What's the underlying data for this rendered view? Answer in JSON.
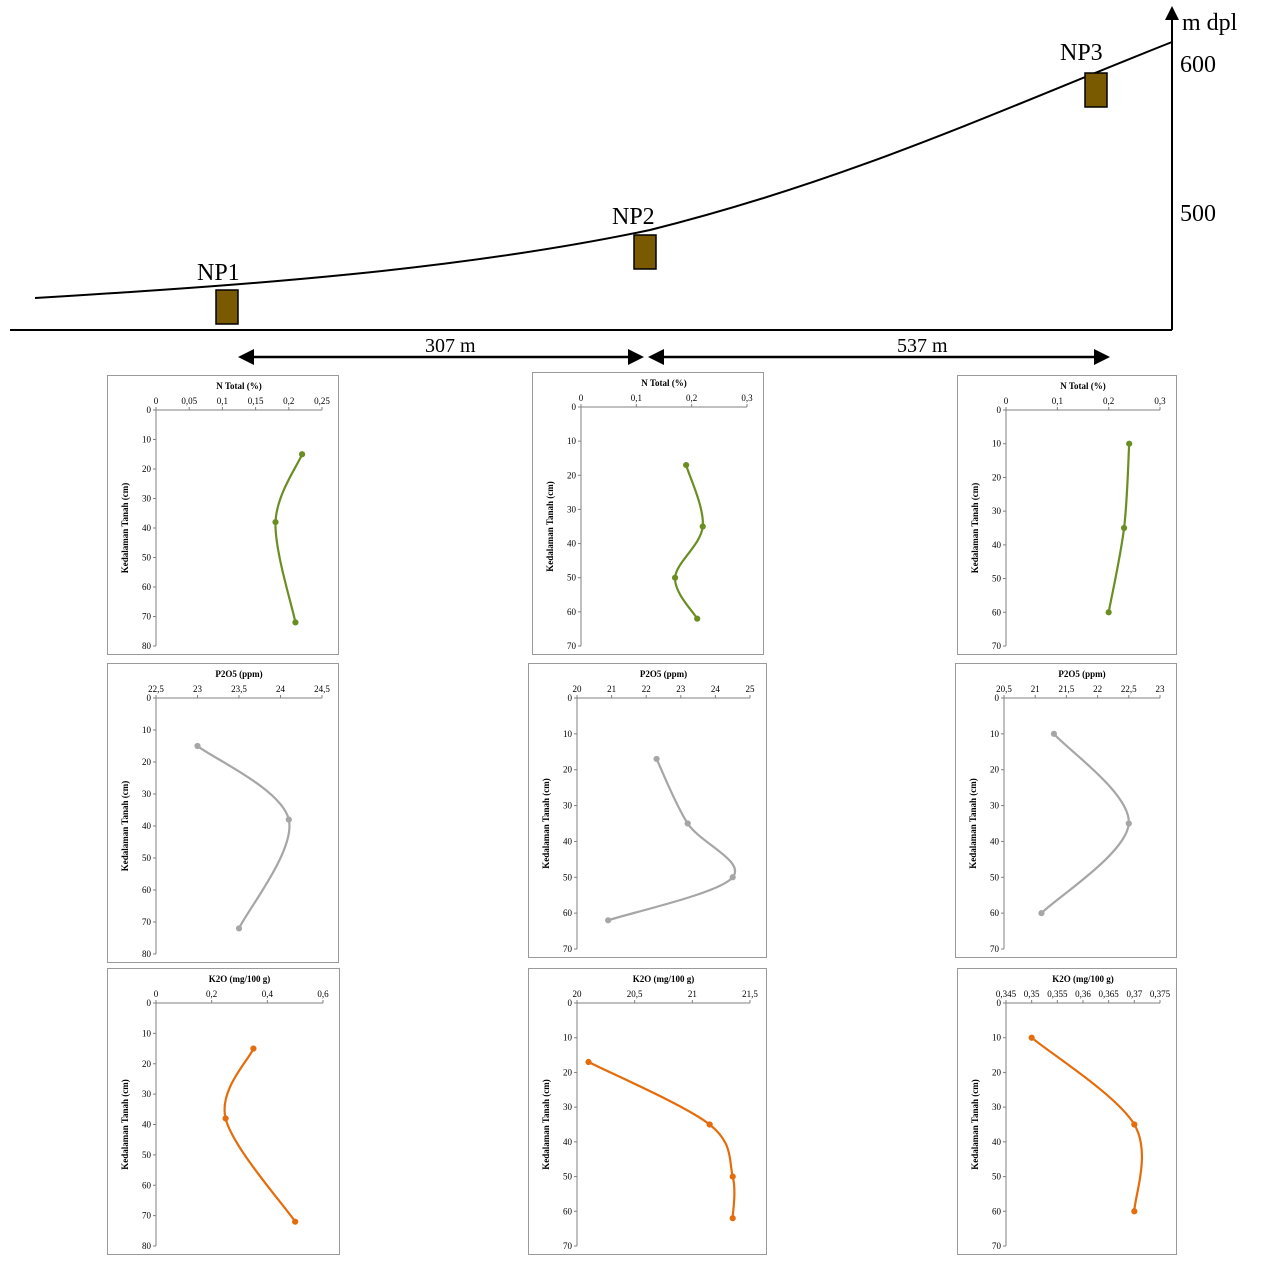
{
  "profile": {
    "elevation_unit": "m dpl",
    "elevation_ticks": [
      "600",
      "500"
    ],
    "sites": [
      {
        "label": "NP1",
        "color": "#7a5a00"
      },
      {
        "label": "NP2",
        "color": "#7a5a00"
      },
      {
        "label": "NP3",
        "color": "#7a5a00"
      }
    ],
    "distances": [
      "307 m",
      "537 m"
    ]
  },
  "colors": {
    "n_total": "#6b8e23",
    "p2o5": "#a6a6a6",
    "k2o": "#e46c0a",
    "p2o5_marker": "#4f81bd"
  },
  "chart_data": [
    {
      "id": "np1-n",
      "type": "line",
      "title": "N Total (%)",
      "ylabel": "Kedalaman Tanah (cm)",
      "x_ticks": [
        "0",
        "0,05",
        "0,1",
        "0,15",
        "0,2",
        "0,25"
      ],
      "xlim": [
        0,
        0.25
      ],
      "y_ticks": [
        "0",
        "10",
        "20",
        "30",
        "40",
        "50",
        "60",
        "70",
        "80"
      ],
      "ylim": [
        0,
        80
      ],
      "x": [
        0.22,
        0.18,
        0.21
      ],
      "y": [
        15,
        38,
        72
      ],
      "color": "#6b8e23"
    },
    {
      "id": "np2-n",
      "type": "line",
      "title": "N Total (%)",
      "ylabel": "Kedalaman Tanah (cm)",
      "x_ticks": [
        "0",
        "0,1",
        "0,2",
        "0,3"
      ],
      "xlim": [
        0,
        0.3
      ],
      "y_ticks": [
        "0",
        "10",
        "20",
        "30",
        "40",
        "50",
        "60",
        "70"
      ],
      "ylim": [
        0,
        70
      ],
      "x": [
        0.19,
        0.22,
        0.17,
        0.21
      ],
      "y": [
        17,
        35,
        50,
        62
      ],
      "color": "#6b8e23"
    },
    {
      "id": "np3-n",
      "type": "line",
      "title": "N Total (%)",
      "ylabel": "Kedalaman Tanah (cm)",
      "x_ticks": [
        "0",
        "0,1",
        "0,2",
        "0,3"
      ],
      "xlim": [
        0,
        0.3
      ],
      "y_ticks": [
        "0",
        "10",
        "20",
        "30",
        "40",
        "50",
        "60",
        "70"
      ],
      "ylim": [
        0,
        70
      ],
      "x": [
        0.24,
        0.23,
        0.2
      ],
      "y": [
        10,
        35,
        60
      ],
      "color": "#6b8e23"
    },
    {
      "id": "np1-p",
      "type": "line",
      "title": "P2O5 (ppm)",
      "ylabel": "Kedalaman Tanah (cm)",
      "x_ticks": [
        "22,5",
        "23",
        "23,5",
        "24",
        "24,5"
      ],
      "xlim": [
        22.5,
        24.5
      ],
      "y_ticks": [
        "0",
        "10",
        "20",
        "30",
        "40",
        "50",
        "60",
        "70",
        "80"
      ],
      "ylim": [
        0,
        80
      ],
      "x": [
        23.0,
        24.1,
        23.5
      ],
      "y": [
        15,
        38,
        72
      ],
      "color": "#a6a6a6"
    },
    {
      "id": "np2-p",
      "type": "line",
      "title": "P2O5 (ppm)",
      "ylabel": "Kedalaman Tanah (cm)",
      "x_ticks": [
        "20",
        "21",
        "22",
        "23",
        "24",
        "25"
      ],
      "xlim": [
        20,
        25
      ],
      "y_ticks": [
        "0",
        "10",
        "20",
        "30",
        "40",
        "50",
        "60",
        "70"
      ],
      "ylim": [
        0,
        70
      ],
      "x": [
        22.3,
        23.2,
        24.5,
        20.9
      ],
      "y": [
        17,
        35,
        50,
        62
      ],
      "color": "#a6a6a6"
    },
    {
      "id": "np3-p",
      "type": "line",
      "title": "P2O5 (ppm)",
      "ylabel": "Kedalaman Tanah (cm)",
      "x_ticks": [
        "20,5",
        "21",
        "21,5",
        "22",
        "22,5",
        "23"
      ],
      "xlim": [
        20.5,
        23
      ],
      "y_ticks": [
        "0",
        "10",
        "20",
        "30",
        "40",
        "50",
        "60",
        "70"
      ],
      "ylim": [
        0,
        70
      ],
      "x": [
        21.3,
        22.5,
        21.1
      ],
      "y": [
        10,
        35,
        60
      ],
      "color": "#a6a6a6"
    },
    {
      "id": "np1-k",
      "type": "line",
      "title": "K2O (mg/100 g)",
      "ylabel": "Kedalaman Tanah (cm)",
      "x_ticks": [
        "0",
        "0,2",
        "0,4",
        "0,6"
      ],
      "xlim": [
        0,
        0.6
      ],
      "y_ticks": [
        "0",
        "10",
        "20",
        "30",
        "40",
        "50",
        "60",
        "70",
        "80"
      ],
      "ylim": [
        0,
        80
      ],
      "x": [
        0.35,
        0.25,
        0.5
      ],
      "y": [
        15,
        38,
        72
      ],
      "color": "#e46c0a"
    },
    {
      "id": "np2-k",
      "type": "line",
      "title": "K2O (mg/100 g)",
      "ylabel": "Kedalaman Tanah (cm)",
      "x_ticks": [
        "20",
        "20,5",
        "21",
        "21,5"
      ],
      "xlim": [
        20,
        21.5
      ],
      "y_ticks": [
        "0",
        "10",
        "20",
        "30",
        "40",
        "50",
        "60",
        "70"
      ],
      "ylim": [
        0,
        70
      ],
      "x": [
        20.1,
        21.15,
        21.35,
        21.35
      ],
      "y": [
        17,
        35,
        50,
        62
      ],
      "color": "#e46c0a"
    },
    {
      "id": "np3-k",
      "type": "line",
      "title": "K2O (mg/100 g)",
      "ylabel": "Kedalaman Tanah (cm)",
      "x_ticks": [
        "0,345",
        "0,35",
        "0,355",
        "0,36",
        "0,365",
        "0,37",
        "0,375"
      ],
      "xlim": [
        0.345,
        0.375
      ],
      "y_ticks": [
        "0",
        "10",
        "20",
        "30",
        "40",
        "50",
        "60",
        "70"
      ],
      "ylim": [
        0,
        70
      ],
      "x": [
        0.35,
        0.37,
        0.37
      ],
      "y": [
        10,
        35,
        60
      ],
      "color": "#e46c0a"
    }
  ]
}
